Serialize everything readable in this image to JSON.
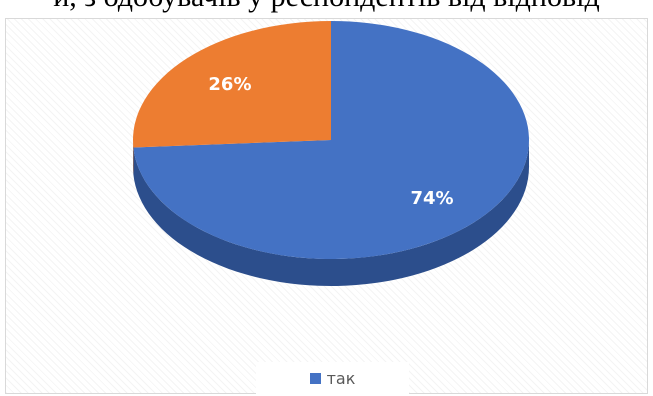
{
  "page": {
    "cropped_heading": "и, з одобувачів у респондентів від відповід"
  },
  "chart_data": {
    "type": "pie",
    "style": "3d",
    "title": "",
    "slices": [
      {
        "label": "так",
        "value": 74,
        "display": "74%",
        "color": "#4472c4",
        "side_color": "#2c4e8c"
      },
      {
        "label": "",
        "value": 26,
        "display": "26%",
        "color": "#ed7d31",
        "side_color": "#b45a1f"
      }
    ],
    "legend": {
      "position": "bottom",
      "entries": [
        {
          "label": "так",
          "color": "#4472c4"
        }
      ]
    },
    "data_label_color": "#ffffff",
    "background_pattern": "diagonal-hatch"
  }
}
